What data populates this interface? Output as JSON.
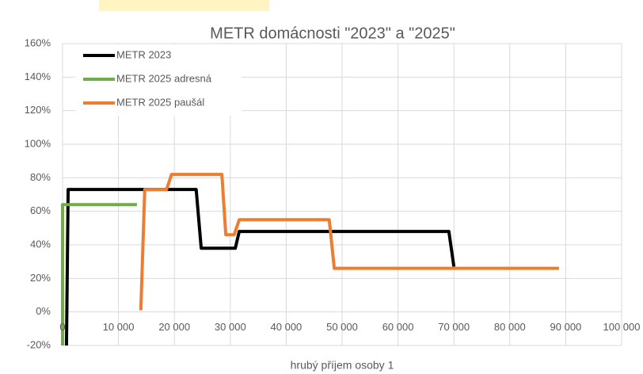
{
  "chart_data": {
    "type": "line",
    "title": "METR domácnosti \"2023\" a \"2025\"",
    "x_label": "hrubý příjem osoby 1",
    "xlim": [
      0,
      100000
    ],
    "xticks": [
      0,
      {
        "value": 10000,
        "label": "10 000"
      },
      {
        "value": 20000,
        "label": "20 000"
      },
      {
        "value": 30000,
        "label": "30 000"
      },
      {
        "value": 40000,
        "label": "40 000"
      },
      {
        "value": 50000,
        "label": "50 000"
      },
      {
        "value": 60000,
        "label": "60 000"
      },
      {
        "value": 70000,
        "label": "70 000"
      },
      {
        "value": 80000,
        "label": "80 000"
      },
      {
        "value": 90000,
        "label": "90 000"
      },
      {
        "value": 100000,
        "label": "100 000"
      }
    ],
    "ylim": [
      -20,
      160
    ],
    "yticks": [
      {
        "value": -20,
        "label": "-20%"
      },
      {
        "value": 0,
        "label": "0%"
      },
      {
        "value": 20,
        "label": "20%"
      },
      {
        "value": 40,
        "label": "40%"
      },
      {
        "value": 60,
        "label": "60%"
      },
      {
        "value": 80,
        "label": "80%"
      },
      {
        "value": 100,
        "label": "100%"
      },
      {
        "value": 120,
        "label": "120%"
      },
      {
        "value": 140,
        "label": "140%"
      },
      {
        "value": 160,
        "label": "160%"
      }
    ],
    "grid": true,
    "legend": "upper-left",
    "series": [
      {
        "name": "METR 2023",
        "color": "#000000",
        "x": [
          700,
          1000,
          23900,
          24800,
          30900,
          31600,
          69100,
          70000
        ],
        "values": [
          -20,
          73,
          73,
          38,
          38,
          48,
          48,
          27
        ]
      },
      {
        "name": "METR 2025 adresná",
        "color": "#70ad47",
        "x": [
          0,
          0,
          13300
        ],
        "values": [
          -20,
          64,
          64
        ]
      },
      {
        "name": "METR 2025 paušál",
        "color": "#ed7d31",
        "x": [
          14000,
          14700,
          18600,
          19500,
          28500,
          29200,
          30700,
          31600,
          47700,
          48600,
          88800
        ],
        "values": [
          1,
          73,
          73,
          82,
          82,
          46,
          46,
          55,
          55,
          26,
          26
        ]
      }
    ]
  }
}
